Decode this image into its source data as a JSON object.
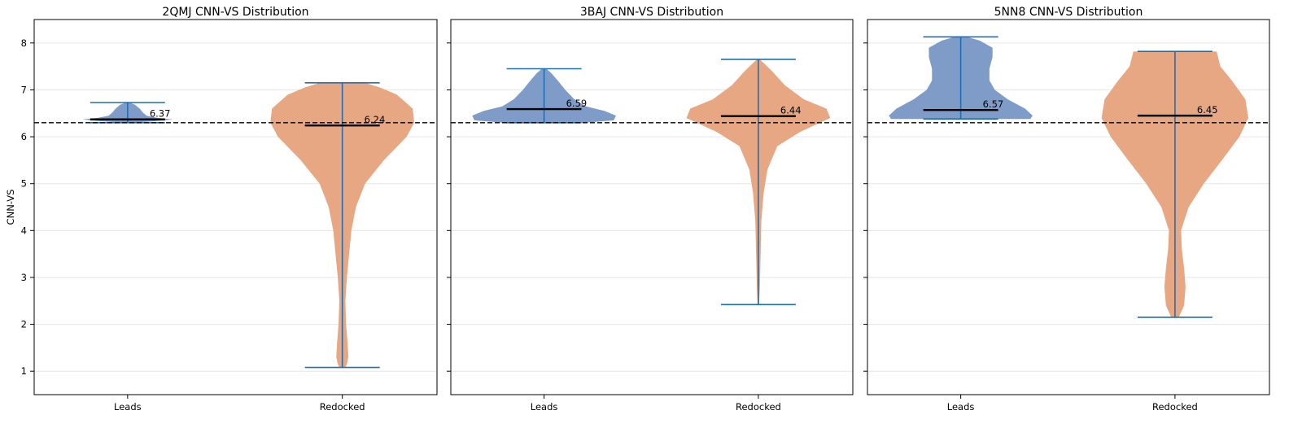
{
  "chart_data": [
    {
      "type": "violin",
      "title": "2QMJ CNN-VS Distribution",
      "xlabel": "",
      "ylabel": "CNN-VS",
      "categories": [
        "Leads",
        "Redocked"
      ],
      "ylim": [
        0.5,
        8.5
      ],
      "yticks": [
        1,
        2,
        3,
        4,
        5,
        6,
        7,
        8
      ],
      "threshold": 6.3,
      "grid": "horizontal",
      "violins": [
        {
          "category": "Leads",
          "color": "#7f9cc8",
          "min": 6.3,
          "max": 6.73,
          "median": 6.37,
          "median_label": "6.37",
          "profile": [
            [
              6.3,
              0.05
            ],
            [
              6.33,
              0.35
            ],
            [
              6.37,
              0.6
            ],
            [
              6.4,
              0.4
            ],
            [
              6.45,
              0.25
            ],
            [
              6.52,
              0.2
            ],
            [
              6.6,
              0.16
            ],
            [
              6.68,
              0.1
            ],
            [
              6.73,
              0.03
            ]
          ]
        },
        {
          "category": "Redocked",
          "color": "#e8a783",
          "min": 1.08,
          "max": 7.15,
          "median": 6.24,
          "median_label": "6.24",
          "profile": [
            [
              1.08,
              0.04
            ],
            [
              1.15,
              0.06
            ],
            [
              1.3,
              0.08
            ],
            [
              1.6,
              0.07
            ],
            [
              2.0,
              0.05
            ],
            [
              2.5,
              0.04
            ],
            [
              3.0,
              0.06
            ],
            [
              3.5,
              0.09
            ],
            [
              4.0,
              0.12
            ],
            [
              4.5,
              0.18
            ],
            [
              5.0,
              0.3
            ],
            [
              5.5,
              0.55
            ],
            [
              6.0,
              0.85
            ],
            [
              6.3,
              0.95
            ],
            [
              6.6,
              0.93
            ],
            [
              6.9,
              0.72
            ],
            [
              7.05,
              0.5
            ],
            [
              7.15,
              0.3
            ]
          ]
        }
      ]
    },
    {
      "type": "violin",
      "title": "3BAJ CNN-VS Distribution",
      "xlabel": "",
      "ylabel": "",
      "categories": [
        "Leads",
        "Redocked"
      ],
      "ylim": [
        0.5,
        8.5
      ],
      "yticks": [
        1,
        2,
        3,
        4,
        5,
        6,
        7,
        8
      ],
      "threshold": 6.3,
      "grid": "horizontal",
      "violins": [
        {
          "category": "Leads",
          "color": "#7f9cc8",
          "min": 6.3,
          "max": 7.45,
          "median": 6.59,
          "median_label": "6.59",
          "profile": [
            [
              6.3,
              0.55
            ],
            [
              6.35,
              0.92
            ],
            [
              6.45,
              0.95
            ],
            [
              6.55,
              0.8
            ],
            [
              6.65,
              0.55
            ],
            [
              6.8,
              0.4
            ],
            [
              7.0,
              0.28
            ],
            [
              7.2,
              0.18
            ],
            [
              7.35,
              0.1
            ],
            [
              7.45,
              0.03
            ]
          ]
        },
        {
          "category": "Redocked",
          "color": "#e8a783",
          "min": 2.42,
          "max": 7.65,
          "median": 6.44,
          "median_label": "6.44",
          "profile": [
            [
              2.42,
              0.01
            ],
            [
              2.8,
              0.02
            ],
            [
              3.5,
              0.03
            ],
            [
              4.2,
              0.04
            ],
            [
              4.8,
              0.07
            ],
            [
              5.3,
              0.12
            ],
            [
              5.8,
              0.25
            ],
            [
              6.1,
              0.55
            ],
            [
              6.4,
              0.95
            ],
            [
              6.6,
              0.9
            ],
            [
              6.8,
              0.6
            ],
            [
              7.1,
              0.35
            ],
            [
              7.4,
              0.18
            ],
            [
              7.65,
              0.02
            ]
          ]
        }
      ]
    },
    {
      "type": "violin",
      "title": "5NN8 CNN-VS Distribution",
      "xlabel": "",
      "ylabel": "",
      "categories": [
        "Leads",
        "Redocked"
      ],
      "ylim": [
        0.5,
        8.5
      ],
      "yticks": [
        1,
        2,
        3,
        4,
        5,
        6,
        7,
        8
      ],
      "threshold": 6.3,
      "grid": "horizontal",
      "violins": [
        {
          "category": "Leads",
          "color": "#7f9cc8",
          "min": 6.38,
          "max": 8.13,
          "median": 6.57,
          "median_label": "6.57",
          "profile": [
            [
              6.38,
              0.92
            ],
            [
              6.45,
              0.95
            ],
            [
              6.6,
              0.85
            ],
            [
              6.8,
              0.62
            ],
            [
              7.0,
              0.45
            ],
            [
              7.2,
              0.38
            ],
            [
              7.45,
              0.38
            ],
            [
              7.7,
              0.42
            ],
            [
              7.9,
              0.42
            ],
            [
              8.05,
              0.25
            ],
            [
              8.13,
              0.08
            ]
          ]
        },
        {
          "category": "Redocked",
          "color": "#e8a783",
          "min": 2.15,
          "max": 7.82,
          "median": 6.45,
          "median_label": "6.45",
          "profile": [
            [
              2.15,
              0.05
            ],
            [
              2.4,
              0.12
            ],
            [
              2.8,
              0.14
            ],
            [
              3.2,
              0.12
            ],
            [
              3.6,
              0.09
            ],
            [
              4.0,
              0.08
            ],
            [
              4.5,
              0.18
            ],
            [
              5.0,
              0.38
            ],
            [
              5.5,
              0.62
            ],
            [
              6.0,
              0.85
            ],
            [
              6.4,
              0.97
            ],
            [
              6.8,
              0.93
            ],
            [
              7.2,
              0.75
            ],
            [
              7.5,
              0.6
            ],
            [
              7.82,
              0.55
            ]
          ]
        }
      ]
    }
  ]
}
